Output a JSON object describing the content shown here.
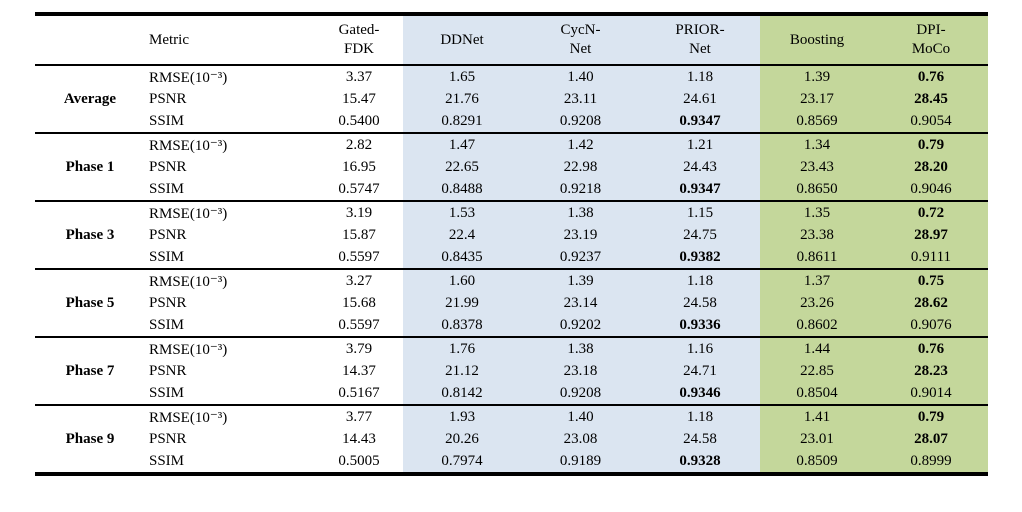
{
  "colors": {
    "blue_bg": "#dbe5f1",
    "green_bg": "#c4d79b",
    "border": "#000000",
    "page_bg": "#ffffff"
  },
  "table": {
    "columns": [
      {
        "key": "rowlabel",
        "label": "",
        "bg": "white"
      },
      {
        "key": "metric",
        "label": "Metric",
        "bg": "white"
      },
      {
        "key": "gatedfdk",
        "label": "Gated-\nFDK",
        "bg": "white"
      },
      {
        "key": "ddnet",
        "label": "DDNet",
        "bg": "blue"
      },
      {
        "key": "cycnnet",
        "label": "CycN-\nNet",
        "bg": "blue"
      },
      {
        "key": "priornet",
        "label": "PRIOR-\nNet",
        "bg": "blue"
      },
      {
        "key": "boosting",
        "label": "Boosting",
        "bg": "green"
      },
      {
        "key": "dpimoco",
        "label": "DPI-\nMoCo",
        "bg": "green"
      }
    ],
    "groups": [
      {
        "label": "Average",
        "rows": [
          {
            "metric": "RMSE(10⁻³)",
            "values": [
              "3.37",
              "1.65",
              "1.40",
              "1.18",
              "1.39",
              "0.76"
            ],
            "bold": [
              5
            ]
          },
          {
            "metric": "PSNR",
            "values": [
              "15.47",
              "21.76",
              "23.11",
              "24.61",
              "23.17",
              "28.45"
            ],
            "bold": [
              5
            ]
          },
          {
            "metric": "SSIM",
            "values": [
              "0.5400",
              "0.8291",
              "0.9208",
              "0.9347",
              "0.8569",
              "0.9054"
            ],
            "bold": [
              3
            ]
          }
        ]
      },
      {
        "label": "Phase 1",
        "rows": [
          {
            "metric": "RMSE(10⁻³)",
            "values": [
              "2.82",
              "1.47",
              "1.42",
              "1.21",
              "1.34",
              "0.79"
            ],
            "bold": [
              5
            ]
          },
          {
            "metric": "PSNR",
            "values": [
              "16.95",
              "22.65",
              "22.98",
              "24.43",
              "23.43",
              "28.20"
            ],
            "bold": [
              5
            ]
          },
          {
            "metric": "SSIM",
            "values": [
              "0.5747",
              "0.8488",
              "0.9218",
              "0.9347",
              "0.8650",
              "0.9046"
            ],
            "bold": [
              3
            ]
          }
        ]
      },
      {
        "label": "Phase 3",
        "rows": [
          {
            "metric": "RMSE(10⁻³)",
            "values": [
              "3.19",
              "1.53",
              "1.38",
              "1.15",
              "1.35",
              "0.72"
            ],
            "bold": [
              5
            ]
          },
          {
            "metric": "PSNR",
            "values": [
              "15.87",
              "22.4",
              "23.19",
              "24.75",
              "23.38",
              "28.97"
            ],
            "bold": [
              5
            ]
          },
          {
            "metric": "SSIM",
            "values": [
              "0.5597",
              "0.8435",
              "0.9237",
              "0.9382",
              "0.8611",
              "0.9111"
            ],
            "bold": [
              3
            ]
          }
        ]
      },
      {
        "label": "Phase 5",
        "rows": [
          {
            "metric": "RMSE(10⁻³)",
            "values": [
              "3.27",
              "1.60",
              "1.39",
              "1.18",
              "1.37",
              "0.75"
            ],
            "bold": [
              5
            ]
          },
          {
            "metric": "PSNR",
            "values": [
              "15.68",
              "21.99",
              "23.14",
              "24.58",
              "23.26",
              "28.62"
            ],
            "bold": [
              5
            ]
          },
          {
            "metric": "SSIM",
            "values": [
              "0.5597",
              "0.8378",
              "0.9202",
              "0.9336",
              "0.8602",
              "0.9076"
            ],
            "bold": [
              3
            ]
          }
        ]
      },
      {
        "label": "Phase 7",
        "rows": [
          {
            "metric": "RMSE(10⁻³)",
            "values": [
              "3.79",
              "1.76",
              "1.38",
              "1.16",
              "1.44",
              "0.76"
            ],
            "bold": [
              5
            ]
          },
          {
            "metric": "PSNR",
            "values": [
              "14.37",
              "21.12",
              "23.18",
              "24.71",
              "22.85",
              "28.23"
            ],
            "bold": [
              5
            ]
          },
          {
            "metric": "SSIM",
            "values": [
              "0.5167",
              "0.8142",
              "0.9208",
              "0.9346",
              "0.8504",
              "0.9014"
            ],
            "bold": [
              3
            ]
          }
        ]
      },
      {
        "label": "Phase 9",
        "rows": [
          {
            "metric": "RMSE(10⁻³)",
            "values": [
              "3.77",
              "1.93",
              "1.40",
              "1.18",
              "1.41",
              "0.79"
            ],
            "bold": [
              5
            ]
          },
          {
            "metric": "PSNR",
            "values": [
              "14.43",
              "20.26",
              "23.08",
              "24.58",
              "23.01",
              "28.07"
            ],
            "bold": [
              5
            ]
          },
          {
            "metric": "SSIM",
            "values": [
              "0.5005",
              "0.7974",
              "0.9189",
              "0.9328",
              "0.8509",
              "0.8999"
            ],
            "bold": [
              3
            ]
          }
        ]
      }
    ]
  }
}
